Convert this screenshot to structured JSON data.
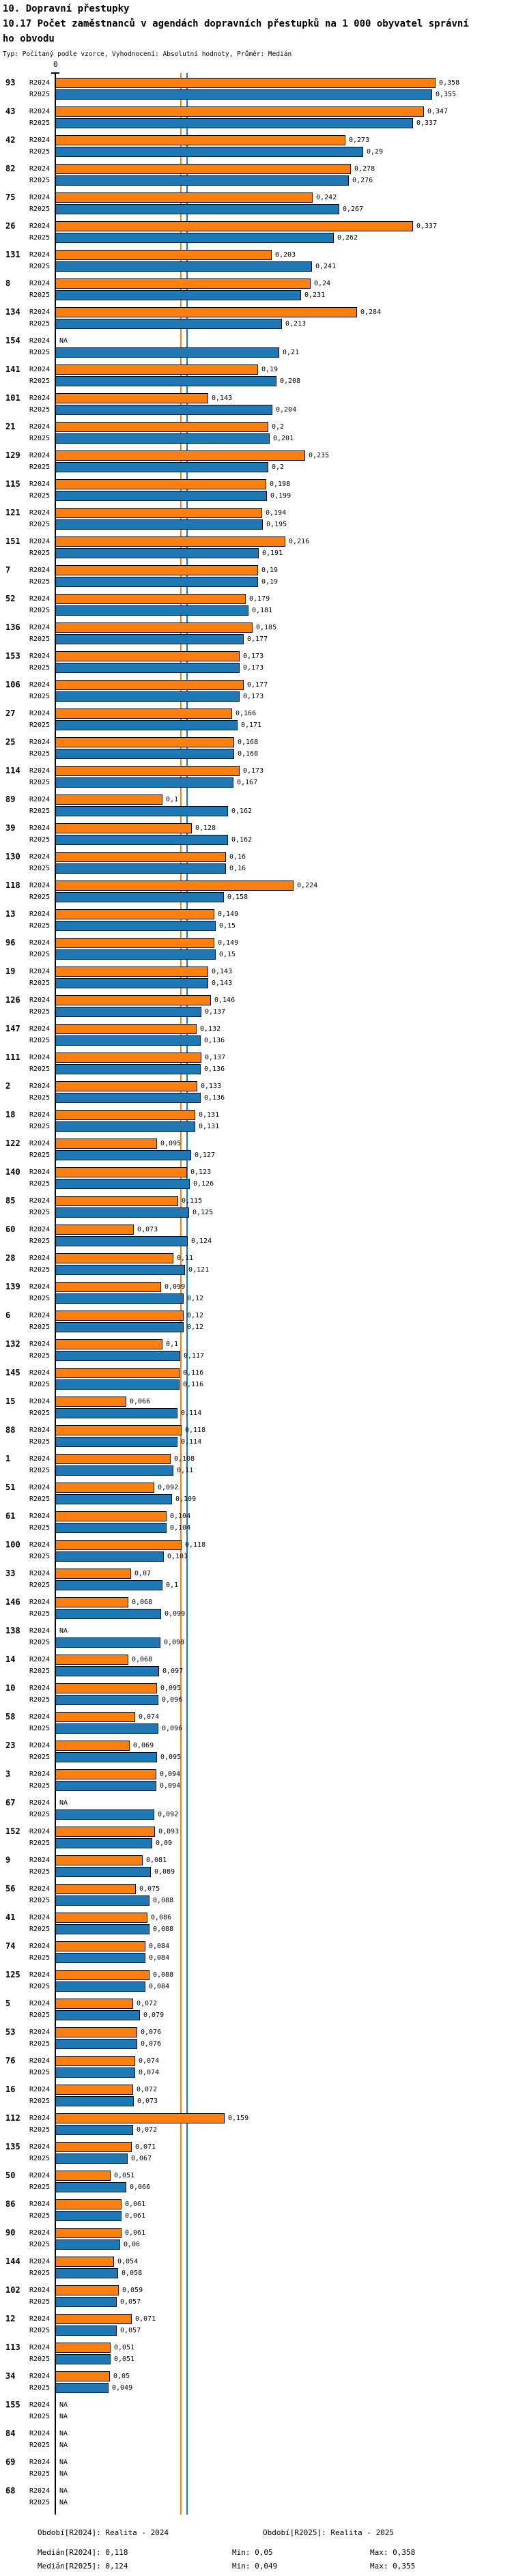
{
  "header": {
    "title_line1": "10. Dopravní přestupky",
    "title_line2": "10.17 Počet zaměstnanců v agendách dopravních přestupků na 1 000 obyvatel správní",
    "title_line3": "ho obvodu",
    "subtitle": "Typ: Počítaný podle vzorce, Vyhodnocení: Absolutní hodnoty, Průměr: Medián"
  },
  "footer": {
    "period_r2024": "Období[R2024]: Realita - 2024",
    "period_r2025": "Období[R2025]: Realita - 2025",
    "median_r2024": "Medián[R2024]: 0,118",
    "min_r2024": "Min: 0,05",
    "max_r2024": "Max: 0,358",
    "median_r2025": "Medián[R2025]: 0,124",
    "min_r2025": "Min: 0,049",
    "max_r2025": "Max: 0,355"
  },
  "chart_data": {
    "type": "bar",
    "orientation": "horizontal",
    "title": "10.17 Počet zaměstnanců v agendách dopravních přestupků na 1 000 obyvatel správního obvodu",
    "series_labels": [
      "R2024",
      "R2025"
    ],
    "colors": {
      "r2024": "#ff7f0e",
      "r2025": "#1f77b4"
    },
    "x_axis_zero_label": "0",
    "na_label": "NA",
    "medians": {
      "r2024": 0.118,
      "r2025": 0.124
    },
    "min": {
      "r2024": 0.05,
      "r2025": 0.049
    },
    "max": {
      "r2024": 0.358,
      "r2025": 0.355
    },
    "rows": [
      {
        "code": "93",
        "r2024": "0,358",
        "r2025": "0,355"
      },
      {
        "code": "43",
        "r2024": "0,347",
        "r2025": "0,337"
      },
      {
        "code": "42",
        "r2024": "0,273",
        "r2025": "0,29"
      },
      {
        "code": "82",
        "r2024": "0,278",
        "r2025": "0,276"
      },
      {
        "code": "75",
        "r2024": "0,242",
        "r2025": "0,267"
      },
      {
        "code": "26",
        "r2024": "0,337",
        "r2025": "0,262"
      },
      {
        "code": "131",
        "r2024": "0,203",
        "r2025": "0,241"
      },
      {
        "code": "8",
        "r2024": "0,24",
        "r2025": "0,231"
      },
      {
        "code": "134",
        "r2024": "0,284",
        "r2025": "0,213"
      },
      {
        "code": "154",
        "r2024": "NA",
        "r2025": "0,21"
      },
      {
        "code": "141",
        "r2024": "0,19",
        "r2025": "0,208"
      },
      {
        "code": "101",
        "r2024": "0,143",
        "r2025": "0,204"
      },
      {
        "code": "21",
        "r2024": "0,2",
        "r2025": "0,201"
      },
      {
        "code": "129",
        "r2024": "0,235",
        "r2025": "0,2"
      },
      {
        "code": "115",
        "r2024": "0,198",
        "r2025": "0,199"
      },
      {
        "code": "121",
        "r2024": "0,194",
        "r2025": "0,195"
      },
      {
        "code": "151",
        "r2024": "0,216",
        "r2025": "0,191"
      },
      {
        "code": "7",
        "r2024": "0,19",
        "r2025": "0,19"
      },
      {
        "code": "52",
        "r2024": "0,179",
        "r2025": "0,181"
      },
      {
        "code": "136",
        "r2024": "0,185",
        "r2025": "0,177"
      },
      {
        "code": "153",
        "r2024": "0,173",
        "r2025": "0,173"
      },
      {
        "code": "106",
        "r2024": "0,177",
        "r2025": "0,173"
      },
      {
        "code": "27",
        "r2024": "0,166",
        "r2025": "0,171"
      },
      {
        "code": "25",
        "r2024": "0,168",
        "r2025": "0,168"
      },
      {
        "code": "114",
        "r2024": "0,173",
        "r2025": "0,167"
      },
      {
        "code": "89",
        "r2024": "0,1",
        "r2025": "0,162"
      },
      {
        "code": "39",
        "r2024": "0,128",
        "r2025": "0,162"
      },
      {
        "code": "130",
        "r2024": "0,16",
        "r2025": "0,16"
      },
      {
        "code": "118",
        "r2024": "0,224",
        "r2025": "0,158"
      },
      {
        "code": "13",
        "r2024": "0,149",
        "r2025": "0,15"
      },
      {
        "code": "96",
        "r2024": "0,149",
        "r2025": "0,15"
      },
      {
        "code": "19",
        "r2024": "0,143",
        "r2025": "0,143"
      },
      {
        "code": "126",
        "r2024": "0,146",
        "r2025": "0,137"
      },
      {
        "code": "147",
        "r2024": "0,132",
        "r2025": "0,136"
      },
      {
        "code": "111",
        "r2024": "0,137",
        "r2025": "0,136"
      },
      {
        "code": "2",
        "r2024": "0,133",
        "r2025": "0,136"
      },
      {
        "code": "18",
        "r2024": "0,131",
        "r2025": "0,131"
      },
      {
        "code": "122",
        "r2024": "0,095",
        "r2025": "0,127"
      },
      {
        "code": "140",
        "r2024": "0,123",
        "r2025": "0,126"
      },
      {
        "code": "85",
        "r2024": "0,115",
        "r2025": "0,125"
      },
      {
        "code": "60",
        "r2024": "0,073",
        "r2025": "0,124"
      },
      {
        "code": "28",
        "r2024": "0,11",
        "r2025": "0,121"
      },
      {
        "code": "139",
        "r2024": "0,099",
        "r2025": "0,12"
      },
      {
        "code": "6",
        "r2024": "0,12",
        "r2025": "0,12"
      },
      {
        "code": "132",
        "r2024": "0,1",
        "r2025": "0,117"
      },
      {
        "code": "145",
        "r2024": "0,116",
        "r2025": "0,116"
      },
      {
        "code": "15",
        "r2024": "0,066",
        "r2025": "0,114"
      },
      {
        "code": "88",
        "r2024": "0,118",
        "r2025": "0,114"
      },
      {
        "code": "1",
        "r2024": "0,108",
        "r2025": "0,11"
      },
      {
        "code": "51",
        "r2024": "0,092",
        "r2025": "0,109"
      },
      {
        "code": "61",
        "r2024": "0,104",
        "r2025": "0,104"
      },
      {
        "code": "100",
        "r2024": "0,118",
        "r2025": "0,101"
      },
      {
        "code": "33",
        "r2024": "0,07",
        "r2025": "0,1"
      },
      {
        "code": "146",
        "r2024": "0,068",
        "r2025": "0,099"
      },
      {
        "code": "138",
        "r2024": "NA",
        "r2025": "0,098"
      },
      {
        "code": "14",
        "r2024": "0,068",
        "r2025": "0,097"
      },
      {
        "code": "10",
        "r2024": "0,095",
        "r2025": "0,096"
      },
      {
        "code": "58",
        "r2024": "0,074",
        "r2025": "0,096"
      },
      {
        "code": "23",
        "r2024": "0,069",
        "r2025": "0,095"
      },
      {
        "code": "3",
        "r2024": "0,094",
        "r2025": "0,094"
      },
      {
        "code": "67",
        "r2024": "NA",
        "r2025": "0,092"
      },
      {
        "code": "152",
        "r2024": "0,093",
        "r2025": "0,09"
      },
      {
        "code": "9",
        "r2024": "0,081",
        "r2025": "0,089"
      },
      {
        "code": "56",
        "r2024": "0,075",
        "r2025": "0,088"
      },
      {
        "code": "41",
        "r2024": "0,086",
        "r2025": "0,088"
      },
      {
        "code": "74",
        "r2024": "0,084",
        "r2025": "0,084"
      },
      {
        "code": "125",
        "r2024": "0,088",
        "r2025": "0,084"
      },
      {
        "code": "5",
        "r2024": "0,072",
        "r2025": "0,079"
      },
      {
        "code": "53",
        "r2024": "0,076",
        "r2025": "0,076"
      },
      {
        "code": "76",
        "r2024": "0,074",
        "r2025": "0,074"
      },
      {
        "code": "16",
        "r2024": "0,072",
        "r2025": "0,073"
      },
      {
        "code": "112",
        "r2024": "0,159",
        "r2025": "0,072"
      },
      {
        "code": "135",
        "r2024": "0,071",
        "r2025": "0,067"
      },
      {
        "code": "50",
        "r2024": "0,051",
        "r2025": "0,066"
      },
      {
        "code": "86",
        "r2024": "0,061",
        "r2025": "0,061"
      },
      {
        "code": "90",
        "r2024": "0,061",
        "r2025": "0,06"
      },
      {
        "code": "144",
        "r2024": "0,054",
        "r2025": "0,058"
      },
      {
        "code": "102",
        "r2024": "0,059",
        "r2025": "0,057"
      },
      {
        "code": "12",
        "r2024": "0,071",
        "r2025": "0,057"
      },
      {
        "code": "113",
        "r2024": "0,051",
        "r2025": "0,051"
      },
      {
        "code": "34",
        "r2024": "0,05",
        "r2025": "0,049"
      },
      {
        "code": "155",
        "r2024": "NA",
        "r2025": "NA"
      },
      {
        "code": "84",
        "r2024": "NA",
        "r2025": "NA"
      },
      {
        "code": "69",
        "r2024": "NA",
        "r2025": "NA"
      },
      {
        "code": "68",
        "r2024": "NA",
        "r2025": "NA"
      }
    ]
  }
}
